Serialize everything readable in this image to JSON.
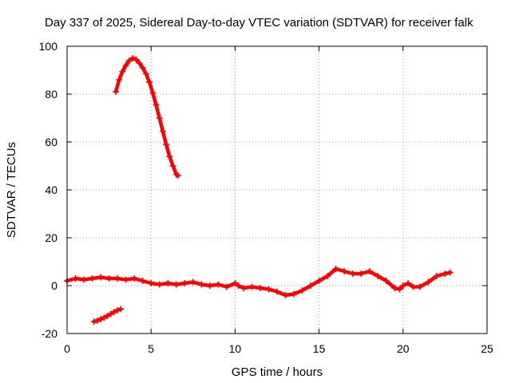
{
  "chart_data": {
    "type": "scatter",
    "title": "Day 337 of 2025, Sidereal Day-to-day VTEC variation (SDTVAR) for receiver falk",
    "xlabel": "GPS time / hours",
    "ylabel": "SDTVAR / TECUs",
    "xlim": [
      0,
      25
    ],
    "ylim": [
      -20,
      100
    ],
    "xticks": [
      0,
      5,
      10,
      15,
      20,
      25
    ],
    "yticks": [
      -20,
      0,
      20,
      40,
      60,
      80,
      100
    ],
    "grid": true,
    "marker_color": "#ff0000",
    "series": [
      {
        "name": "upper-arc",
        "x": [
          2.9,
          3.1,
          3.3,
          3.5,
          3.7,
          3.9,
          4.1,
          4.3,
          4.5,
          4.7,
          4.9,
          5.1,
          5.3,
          5.5,
          5.7,
          5.9,
          6.1,
          6.3,
          6.5,
          6.6
        ],
        "y": [
          81,
          86,
          89.5,
          92,
          94,
          95,
          94.5,
          93,
          91,
          88.5,
          85,
          80.5,
          75.5,
          70,
          64.5,
          59,
          54,
          50,
          46.5,
          46
        ]
      },
      {
        "name": "lower-segment",
        "x": [
          1.6,
          1.8,
          2.0,
          2.2,
          2.4,
          2.6,
          2.8,
          3.0,
          3.2
        ],
        "y": [
          -15,
          -14.6,
          -14,
          -13.4,
          -12.6,
          -11.8,
          -11,
          -10.3,
          -9.8
        ]
      },
      {
        "name": "main-trace",
        "x": [
          0,
          0.5,
          1.0,
          1.5,
          2.0,
          2.5,
          3.0,
          3.5,
          4.0,
          4.5,
          5.0,
          5.5,
          6.0,
          6.5,
          7.0,
          7.5,
          8.0,
          8.5,
          9.0,
          9.5,
          10.0,
          10.2,
          10.5,
          11.0,
          11.5,
          12.0,
          12.5,
          13.0,
          13.5,
          14.0,
          14.5,
          15.0,
          15.5,
          16.0,
          16.5,
          17.0,
          17.5,
          18.0,
          18.5,
          19.0,
          19.5,
          19.8,
          20.0,
          20.3,
          20.6,
          21.0,
          21.5,
          22.0,
          22.5,
          22.8
        ],
        "y": [
          2,
          3,
          2.5,
          3,
          3.5,
          3,
          3,
          2.5,
          3,
          2,
          1,
          0.5,
          1,
          0.5,
          1,
          1.5,
          0.5,
          0,
          0.5,
          -0.5,
          1,
          0,
          -1,
          -0.5,
          -1,
          -1.5,
          -2.5,
          -4,
          -3.5,
          -2,
          0,
          2,
          4,
          7,
          6,
          5,
          5,
          6,
          4,
          2,
          -1,
          -1.5,
          0,
          1,
          -0.5,
          -0.5,
          1.5,
          4,
          5,
          5.5
        ]
      }
    ]
  }
}
